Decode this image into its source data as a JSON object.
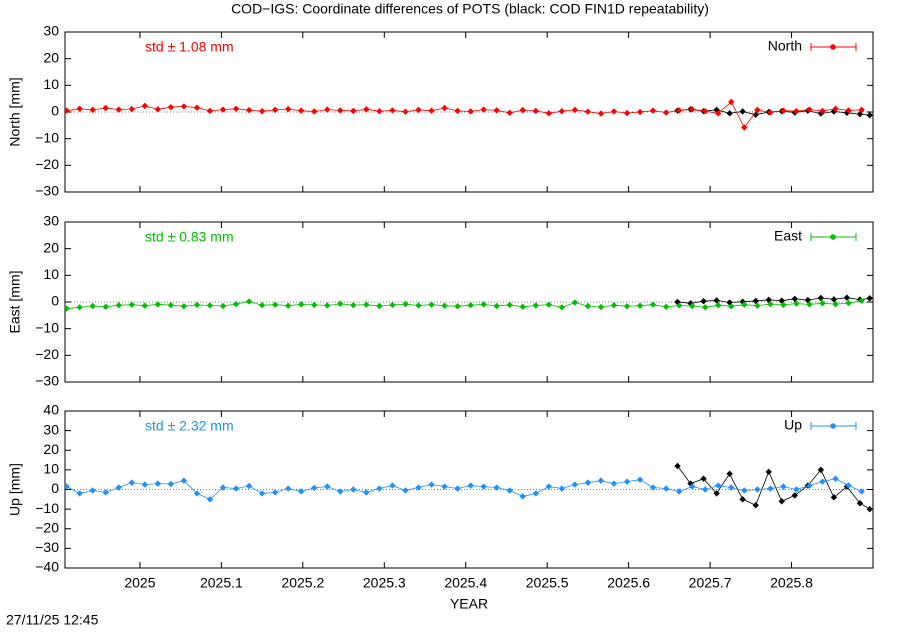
{
  "title": "COD−IGS: Coordinate differences of POTS (black: COD FIN1D repeatability)",
  "footer": "27/11/25 12:45",
  "chart_data": [
    {
      "type": "line",
      "ylabel": "North [mm]",
      "annotation": "std ± 1.08 mm",
      "xlim": [
        2024.908,
        2025.9
      ],
      "ylim": [
        -30,
        30
      ],
      "yticks": [
        30,
        20,
        10,
        0,
        {
          "value": -10,
          "label": "−10"
        },
        {
          "value": -20,
          "label": "−20"
        },
        {
          "value": -30,
          "label": "−30"
        }
      ],
      "series": [
        {
          "name": "North",
          "color": "#ff0000",
          "x": [
            2024.91,
            2024.926,
            2024.942,
            2024.958,
            2024.974,
            2024.99,
            2025.006,
            2025.022,
            2025.038,
            2025.054,
            2025.07,
            2025.086,
            2025.102,
            2025.118,
            2025.134,
            2025.15,
            2025.166,
            2025.182,
            2025.198,
            2025.214,
            2025.23,
            2025.246,
            2025.262,
            2025.278,
            2025.294,
            2025.31,
            2025.326,
            2025.342,
            2025.358,
            2025.374,
            2025.39,
            2025.406,
            2025.422,
            2025.438,
            2025.454,
            2025.47,
            2025.486,
            2025.502,
            2025.518,
            2025.534,
            2025.55,
            2025.566,
            2025.582,
            2025.598,
            2025.614,
            2025.63,
            2025.646,
            2025.662,
            2025.678,
            2025.694,
            2025.71,
            2025.726,
            2025.742,
            2025.758,
            2025.774,
            2025.79,
            2025.806,
            2025.822,
            2025.838,
            2025.854,
            2025.87,
            2025.886
          ],
          "values": [
            0.5,
            1.2,
            0.8,
            1.5,
            0.9,
            1.1,
            2.3,
            1.0,
            1.8,
            2.1,
            1.6,
            0.4,
            0.9,
            1.2,
            0.7,
            0.3,
            0.8,
            1.1,
            0.5,
            0.2,
            0.9,
            0.6,
            0.4,
            1.0,
            0.3,
            0.6,
            0.1,
            0.8,
            0.5,
            1.5,
            0.4,
            0.2,
            0.9,
            0.6,
            -0.3,
            0.7,
            0.4,
            -0.5,
            0.3,
            0.8,
            0.1,
            -0.6,
            0.2,
            -0.4,
            0.0,
            0.5,
            -0.2,
            0.6,
            1.0,
            0.3,
            -0.5,
            3.8,
            -5.8,
            0.8,
            -0.2,
            0.5,
            0.3,
            0.9,
            0.4,
            1.2,
            0.6,
            0.8
          ]
        },
        {
          "color": "#000000",
          "x": [
            2025.66,
            2025.676,
            2025.692,
            2025.708,
            2025.724,
            2025.74,
            2025.756,
            2025.772,
            2025.788,
            2025.804,
            2025.82,
            2025.836,
            2025.852,
            2025.868,
            2025.884,
            2025.896
          ],
          "values": [
            0.5,
            1.0,
            0.3,
            0.8,
            -0.5,
            0.2,
            -1.0,
            0.0,
            0.3,
            -0.2,
            0.5,
            -0.6,
            0.2,
            -0.3,
            -0.8,
            -1.2
          ]
        }
      ]
    },
    {
      "type": "line",
      "ylabel": "East [mm]",
      "annotation": "std ± 0.83 mm",
      "xlim": [
        2024.908,
        2025.9
      ],
      "ylim": [
        -30,
        30
      ],
      "yticks": [
        30,
        20,
        10,
        0,
        {
          "value": -10,
          "label": "−10"
        },
        {
          "value": -20,
          "label": "−20"
        },
        {
          "value": -30,
          "label": "−30"
        }
      ],
      "series": [
        {
          "name": "East",
          "color": "#00c000",
          "x": [
            2024.91,
            2024.926,
            2024.942,
            2024.958,
            2024.974,
            2024.99,
            2025.006,
            2025.022,
            2025.038,
            2025.054,
            2025.07,
            2025.086,
            2025.102,
            2025.118,
            2025.134,
            2025.15,
            2025.166,
            2025.182,
            2025.198,
            2025.214,
            2025.23,
            2025.246,
            2025.262,
            2025.278,
            2025.294,
            2025.31,
            2025.326,
            2025.342,
            2025.358,
            2025.374,
            2025.39,
            2025.406,
            2025.422,
            2025.438,
            2025.454,
            2025.47,
            2025.486,
            2025.502,
            2025.518,
            2025.534,
            2025.55,
            2025.566,
            2025.582,
            2025.598,
            2025.614,
            2025.63,
            2025.646,
            2025.662,
            2025.678,
            2025.694,
            2025.71,
            2025.726,
            2025.742,
            2025.758,
            2025.774,
            2025.79,
            2025.806,
            2025.822,
            2025.838,
            2025.854,
            2025.87,
            2025.886
          ],
          "values": [
            -2.5,
            -2.0,
            -1.5,
            -1.8,
            -1.2,
            -1.0,
            -1.4,
            -0.9,
            -1.2,
            -1.6,
            -1.1,
            -1.3,
            -1.5,
            -0.8,
            0.2,
            -1.2,
            -1.0,
            -1.4,
            -0.9,
            -1.1,
            -1.3,
            -0.7,
            -1.2,
            -1.0,
            -1.5,
            -1.1,
            -0.8,
            -1.3,
            -1.0,
            -1.4,
            -1.6,
            -1.2,
            -0.9,
            -1.5,
            -1.1,
            -1.8,
            -1.3,
            -1.0,
            -2.0,
            -0.2,
            -1.5,
            -1.9,
            -1.2,
            -1.6,
            -1.4,
            -1.0,
            -1.8,
            -1.3,
            -1.5,
            -2.0,
            -1.2,
            -1.6,
            -1.0,
            -1.4,
            -0.8,
            -1.1,
            -0.6,
            -0.9,
            -0.5,
            -0.8,
            -0.4,
            0.5
          ]
        },
        {
          "color": "#000000",
          "x": [
            2025.66,
            2025.676,
            2025.692,
            2025.708,
            2025.724,
            2025.74,
            2025.756,
            2025.772,
            2025.788,
            2025.804,
            2025.82,
            2025.836,
            2025.852,
            2025.868,
            2025.884,
            2025.896
          ],
          "values": [
            0.0,
            -0.5,
            0.3,
            0.6,
            -0.2,
            0.1,
            0.4,
            0.8,
            0.5,
            1.2,
            0.7,
            1.5,
            1.0,
            1.6,
            0.9,
            1.4
          ]
        }
      ]
    },
    {
      "type": "line",
      "ylabel": "Up [mm]",
      "annotation": "std ± 2.32 mm",
      "xlabel": "YEAR",
      "xlim": [
        2024.908,
        2025.9
      ],
      "ylim": [
        -40,
        40
      ],
      "xticks": [
        2025,
        2025.1,
        2025.2,
        2025.3,
        2025.4,
        2025.5,
        2025.6,
        2025.7,
        2025.8
      ],
      "yticks": [
        40,
        30,
        20,
        10,
        0,
        {
          "value": -10,
          "label": "−10"
        },
        {
          "value": -20,
          "label": "−20"
        },
        {
          "value": -30,
          "label": "−30"
        },
        {
          "value": -40,
          "label": "−40"
        }
      ],
      "series": [
        {
          "name": "Up",
          "color": "#1e90ff",
          "x": [
            2024.91,
            2024.926,
            2024.942,
            2024.958,
            2024.974,
            2024.99,
            2025.006,
            2025.022,
            2025.038,
            2025.054,
            2025.07,
            2025.086,
            2025.102,
            2025.118,
            2025.134,
            2025.15,
            2025.166,
            2025.182,
            2025.198,
            2025.214,
            2025.23,
            2025.246,
            2025.262,
            2025.278,
            2025.294,
            2025.31,
            2025.326,
            2025.342,
            2025.358,
            2025.374,
            2025.39,
            2025.406,
            2025.422,
            2025.438,
            2025.454,
            2025.47,
            2025.486,
            2025.502,
            2025.518,
            2025.534,
            2025.55,
            2025.566,
            2025.582,
            2025.598,
            2025.614,
            2025.63,
            2025.646,
            2025.662,
            2025.678,
            2025.694,
            2025.71,
            2025.726,
            2025.742,
            2025.758,
            2025.774,
            2025.79,
            2025.806,
            2025.822,
            2025.838,
            2025.854,
            2025.87,
            2025.886
          ],
          "values": [
            1.5,
            -2.0,
            -0.5,
            -1.5,
            1.0,
            3.5,
            2.5,
            3.0,
            2.8,
            4.5,
            -2.0,
            -5.0,
            1.0,
            0.5,
            1.8,
            -2.0,
            -1.5,
            0.5,
            -1.0,
            0.8,
            1.5,
            -1.0,
            0.0,
            -1.5,
            0.5,
            2.0,
            -0.5,
            1.0,
            2.5,
            1.5,
            0.5,
            2.0,
            1.5,
            1.0,
            -0.5,
            -3.5,
            -2.0,
            1.5,
            0.5,
            2.5,
            3.5,
            4.5,
            3.0,
            4.0,
            5.0,
            1.0,
            0.5,
            -1.0,
            1.5,
            0.0,
            2.0,
            1.0,
            -0.5,
            0.0,
            0.5,
            1.5,
            0.0,
            2.0,
            4.0,
            5.5,
            2.0,
            -1.0
          ]
        },
        {
          "color": "#000000",
          "x": [
            2025.66,
            2025.676,
            2025.692,
            2025.708,
            2025.724,
            2025.74,
            2025.756,
            2025.772,
            2025.788,
            2025.804,
            2025.82,
            2025.836,
            2025.852,
            2025.868,
            2025.884,
            2025.896
          ],
          "values": [
            12.0,
            3.0,
            5.5,
            -2.0,
            8.0,
            -5.0,
            -8.0,
            9.0,
            -6.0,
            -3.0,
            2.0,
            10.0,
            -4.0,
            1.5,
            -7.0,
            -10.0
          ]
        }
      ]
    }
  ]
}
